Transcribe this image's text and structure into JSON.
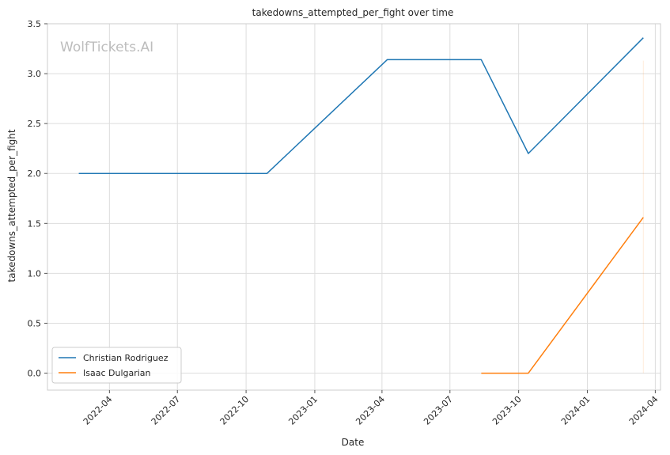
{
  "chart_data": {
    "type": "line",
    "title": "takedowns_attempted_per_fight over time",
    "xlabel": "Date",
    "ylabel": "takedowns_attempted_per_fight",
    "watermark": "WolfTickets.AI",
    "xlim": [
      "2022-01-08",
      "2024-04-08"
    ],
    "ylim": [
      -0.17,
      3.5
    ],
    "x_ticks": [
      "2022-04",
      "2022-07",
      "2022-10",
      "2023-01",
      "2023-04",
      "2023-07",
      "2023-10",
      "2024-01",
      "2024-04"
    ],
    "y_ticks": [
      0.0,
      0.5,
      1.0,
      1.5,
      2.0,
      2.5,
      3.0,
      3.5
    ],
    "grid": true,
    "legend_position": "lower-left",
    "series": [
      {
        "name": "Christian Rodriguez",
        "color": "#1f77b4",
        "points": [
          {
            "x": "2022-02-19",
            "y": 2.0
          },
          {
            "x": "2022-10-29",
            "y": 2.0
          },
          {
            "x": "2023-04-08",
            "y": 3.14
          },
          {
            "x": "2023-08-12",
            "y": 3.14
          },
          {
            "x": "2023-10-14",
            "y": 2.2
          },
          {
            "x": "2024-03-16",
            "y": 3.36
          }
        ]
      },
      {
        "name": "Isaac Dulgarian",
        "color": "#ff7f0e",
        "points": [
          {
            "x": "2023-08-12",
            "y": 0.0
          },
          {
            "x": "2023-10-14",
            "y": 0.0
          },
          {
            "x": "2024-03-16",
            "y": 1.56
          }
        ]
      }
    ]
  }
}
